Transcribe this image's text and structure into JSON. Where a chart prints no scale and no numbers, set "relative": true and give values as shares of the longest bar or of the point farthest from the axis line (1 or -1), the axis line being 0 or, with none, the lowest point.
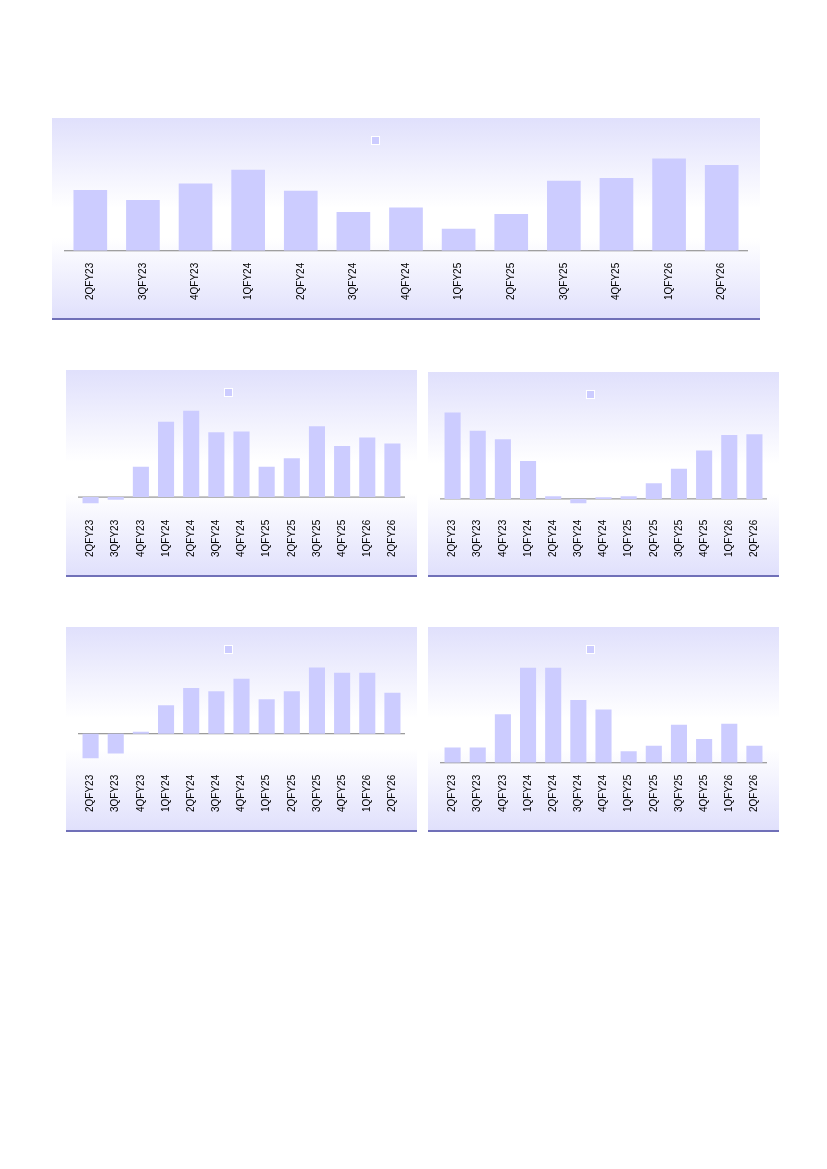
{
  "chart_data": [
    {
      "type": "bar",
      "relative": true,
      "categories": [
        "2QFY23",
        "3QFY23",
        "4QFY23",
        "1QFY24",
        "2QFY24",
        "3QFY24",
        "4QFY24",
        "1QFY25",
        "2QFY25",
        "3QFY25",
        "4QFY25",
        "1QFY26",
        "2QFY26"
      ],
      "color": "#ccccff",
      "values": [
        0.66,
        0.55,
        0.73,
        0.88,
        0.65,
        0.42,
        0.47,
        0.24,
        0.4,
        0.76,
        0.79,
        1,
        0.93
      ]
    },
    {
      "type": "bar",
      "relative": true,
      "categories": [
        "2QFY23",
        "3QFY23",
        "4QFY23",
        "1QFY24",
        "2QFY24",
        "3QFY24",
        "4QFY24",
        "1QFY25",
        "2QFY25",
        "3QFY25",
        "4QFY25",
        "1QFY26",
        "2QFY26"
      ],
      "color": "#ccccff",
      "values": [
        -0.07,
        -0.03,
        0.35,
        0.87,
        1,
        0.75,
        0.76,
        0.35,
        0.45,
        0.82,
        0.59,
        0.69,
        0.62
      ]
    },
    {
      "type": "bar",
      "relative": true,
      "categories": [
        "2QFY23",
        "3QFY23",
        "4QFY23",
        "1QFY24",
        "2QFY24",
        "3QFY24",
        "4QFY24",
        "1QFY25",
        "2QFY25",
        "3QFY25",
        "4QFY25",
        "1QFY26",
        "2QFY26"
      ],
      "color": "#ccccff",
      "values": [
        1,
        0.79,
        0.69,
        0.44,
        0.03,
        -0.05,
        0.02,
        0.03,
        0.18,
        0.35,
        0.56,
        0.74,
        0.75
      ]
    },
    {
      "type": "bar",
      "relative": true,
      "categories": [
        "2QFY23",
        "3QFY23",
        "4QFY23",
        "1QFY24",
        "2QFY24",
        "3QFY24",
        "4QFY24",
        "1QFY25",
        "2QFY25",
        "3QFY25",
        "4QFY25",
        "1QFY26",
        "2QFY26"
      ],
      "color": "#ccccff",
      "values": [
        -0.37,
        -0.3,
        0.03,
        0.43,
        0.69,
        0.64,
        0.83,
        0.52,
        0.64,
        1,
        0.92,
        0.92,
        0.62
      ]
    },
    {
      "type": "bar",
      "relative": true,
      "categories": [
        "2QFY23",
        "3QFY23",
        "4QFY23",
        "1QFY24",
        "2QFY24",
        "3QFY24",
        "4QFY24",
        "1QFY25",
        "2QFY25",
        "3QFY25",
        "4QFY25",
        "1QFY26",
        "2QFY26"
      ],
      "color": "#ccccff",
      "values": [
        0.16,
        0.16,
        0.51,
        1,
        1,
        0.66,
        0.56,
        0.12,
        0.18,
        0.4,
        0.25,
        0.41,
        0.18
      ]
    }
  ]
}
